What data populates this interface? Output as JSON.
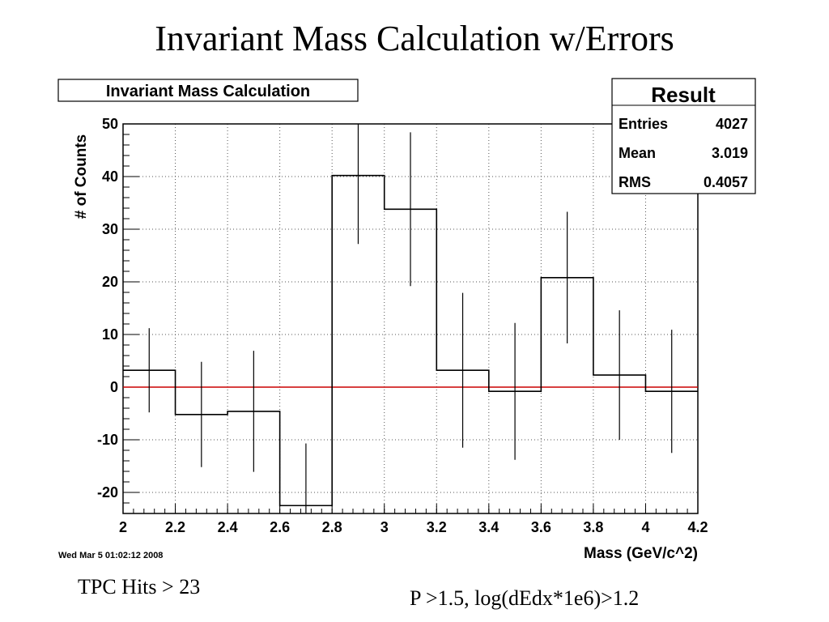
{
  "slide": {
    "title": "Invariant Mass Calculation w/Errors",
    "note_left": "TPC Hits > 23",
    "note_right": "P >1.5, log(dEdx*1e6)>1.2"
  },
  "chart_data": {
    "type": "bar",
    "style": "step-histogram-with-error-bars",
    "title": "Invariant Mass Calculation",
    "xlabel": "Mass (GeV/c^2)",
    "ylabel": "# of Counts",
    "xlim": [
      2,
      4.2
    ],
    "ylim": [
      -24,
      50
    ],
    "grid": true,
    "x_ticks": [
      "2",
      "2.2",
      "2.4",
      "2.6",
      "2.8",
      "3",
      "3.2",
      "3.4",
      "3.6",
      "3.8",
      "4",
      "4.2"
    ],
    "y_ticks": [
      "-20",
      "-10",
      "0",
      "10",
      "20",
      "30",
      "40",
      "50"
    ],
    "bin_edges": [
      2.0,
      2.2,
      2.4,
      2.6,
      2.8,
      3.0,
      3.2,
      3.4,
      3.6,
      3.8,
      4.0,
      4.2
    ],
    "values": [
      3.2,
      -5.2,
      -4.6,
      -22.5,
      40.2,
      33.8,
      3.2,
      -0.8,
      20.8,
      2.3,
      -0.8
    ],
    "errors": [
      8.0,
      10.0,
      11.5,
      11.8,
      13.0,
      14.6,
      14.7,
      13.0,
      12.5,
      12.3,
      11.7
    ],
    "reference_line": {
      "y": 0,
      "color": "#cc0000"
    },
    "stats_box": {
      "title": "Result",
      "rows": [
        {
          "label": "Entries",
          "value": "4027"
        },
        {
          "label": "Mean",
          "value": "3.019"
        },
        {
          "label": "RMS",
          "value": "0.4057"
        }
      ]
    },
    "timestamp": "Wed Mar  5 01:02:12 2008",
    "line_color": "#000000"
  }
}
